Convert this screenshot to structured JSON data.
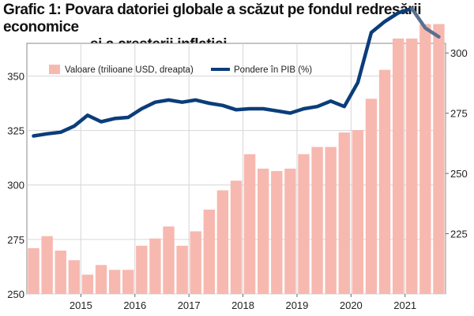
{
  "header": {
    "title_line1": "Grafic 1: Povara datoriei globale a scăzut pe fondul redresării economice",
    "title_line2": "și a creșterii inflației"
  },
  "chart_data": {
    "type": "bar+line",
    "categories": [
      "2014Q2",
      "2014Q3",
      "2014Q4",
      "2015Q1",
      "2015Q2",
      "2015Q3",
      "2015Q4",
      "2016Q1",
      "2016Q2",
      "2016Q3",
      "2016Q4",
      "2017Q1",
      "2017Q2",
      "2017Q3",
      "2017Q4",
      "2018Q1",
      "2018Q2",
      "2018Q3",
      "2018Q4",
      "2019Q1",
      "2019Q2",
      "2019Q3",
      "2019Q4",
      "2020Q1",
      "2020Q2",
      "2020Q3",
      "2020Q4",
      "2021Q1",
      "2021Q2",
      "2021Q3",
      "2021Q4"
    ],
    "series": [
      {
        "name": "Valoare (trilioane USD, dreapta)",
        "axis": "right",
        "type": "bar",
        "color": "#f7b8b0",
        "values": [
          219,
          224,
          218,
          214,
          208,
          212,
          210,
          210,
          220,
          223,
          228,
          220,
          226,
          235,
          243,
          247,
          258,
          252,
          251,
          252,
          258,
          261,
          261,
          267,
          268,
          281,
          293,
          306,
          306,
          312,
          312
        ]
      },
      {
        "name": "Pondere în PIB (%)",
        "axis": "left",
        "type": "line",
        "color": "#0b3d7a",
        "values": [
          322.5,
          323.5,
          324.2,
          327,
          332,
          329,
          330.5,
          331,
          335,
          338,
          339,
          338,
          339,
          337.5,
          336.5,
          334.5,
          335,
          335,
          334,
          333,
          335,
          336,
          338.5,
          336,
          347,
          370,
          375,
          379,
          381,
          372,
          368
        ]
      }
    ],
    "x_tick_labels": [
      "2015",
      "2016",
      "2017",
      "2018",
      "2019",
      "2020",
      "2021"
    ],
    "x_tick_positions": [
      3.5,
      7.5,
      11.5,
      15.5,
      19.5,
      23.5,
      27.5
    ],
    "left_axis": {
      "ylim": [
        250,
        365
      ],
      "ticks": [
        250,
        275,
        300,
        325,
        350
      ]
    },
    "right_axis": {
      "ylim": [
        200,
        304
      ],
      "ticks": [
        225,
        250,
        275,
        300
      ]
    },
    "legend_position": "top-left",
    "grid": true
  }
}
